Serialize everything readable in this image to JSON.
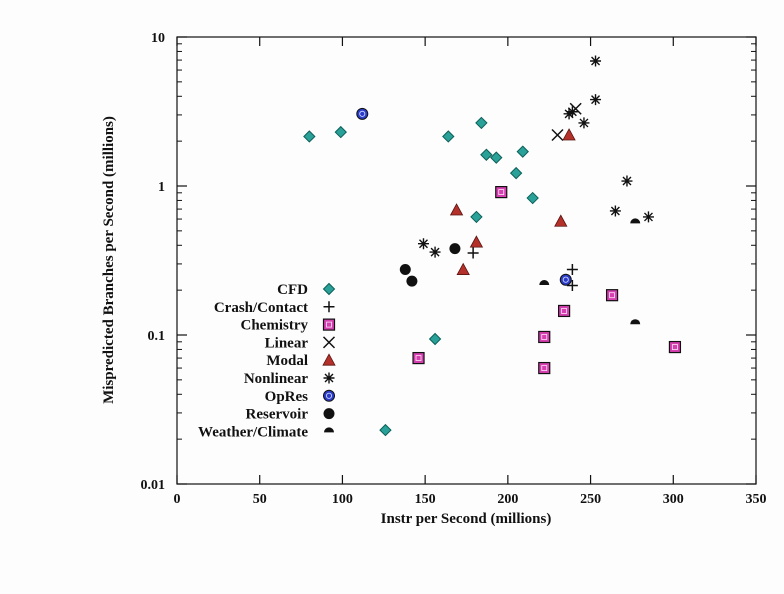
{
  "chart_data": {
    "type": "scatter",
    "title": "",
    "xlabel": "Instr per Second (millions)",
    "ylabel": "Mispredicted Branches per Second (millions)",
    "xlim": [
      0,
      350
    ],
    "ylim": [
      0.01,
      10
    ],
    "yscale": "log",
    "x_ticks": [
      "0",
      "50",
      "100",
      "150",
      "200",
      "250",
      "300",
      "350"
    ],
    "y_ticks": [
      "0.01",
      "0.1",
      "1",
      "10"
    ],
    "grid": false,
    "legend_position": "left",
    "series": [
      {
        "name": "CFD",
        "marker": "diamond",
        "color": "#2aa198",
        "points": [
          [
            80,
            2.15
          ],
          [
            99,
            2.3
          ],
          [
            126,
            0.023
          ],
          [
            156,
            0.094
          ],
          [
            164,
            2.15
          ],
          [
            181,
            0.62
          ],
          [
            184,
            2.65
          ],
          [
            187,
            1.62
          ],
          [
            193,
            1.55
          ],
          [
            205,
            1.22
          ],
          [
            209,
            1.7
          ],
          [
            215,
            0.83
          ]
        ]
      },
      {
        "name": "Crash/Contact",
        "marker": "plus",
        "color": "#111111",
        "points": [
          [
            179,
            0.355
          ],
          [
            239,
            0.275
          ],
          [
            239,
            0.215
          ]
        ]
      },
      {
        "name": "Chemistry",
        "marker": "square",
        "color": "#d63fb0",
        "points": [
          [
            146,
            0.07
          ],
          [
            196,
            0.91
          ],
          [
            222,
            0.097
          ],
          [
            222,
            0.06
          ],
          [
            234,
            0.145
          ],
          [
            263,
            0.185
          ],
          [
            301,
            0.083
          ]
        ]
      },
      {
        "name": "Linear",
        "marker": "x",
        "color": "#111111",
        "points": [
          [
            230,
            2.2
          ],
          [
            241,
            3.3
          ]
        ]
      },
      {
        "name": "Modal",
        "marker": "triangle",
        "color": "#b3312a",
        "points": [
          [
            169,
            0.69
          ],
          [
            173,
            0.275
          ],
          [
            181,
            0.42
          ],
          [
            232,
            0.58
          ],
          [
            237,
            2.2
          ]
        ]
      },
      {
        "name": "Nonlinear",
        "marker": "asterisk",
        "color": "#111111",
        "points": [
          [
            149,
            0.41
          ],
          [
            156,
            0.36
          ],
          [
            237,
            3.05
          ],
          [
            239,
            3.15
          ],
          [
            246,
            2.65
          ],
          [
            253,
            6.9
          ],
          [
            253,
            3.8
          ],
          [
            265,
            0.68
          ],
          [
            272,
            1.08
          ],
          [
            285,
            0.62
          ]
        ]
      },
      {
        "name": "OpRes",
        "marker": "circle-blue",
        "color": "#2a3bc8",
        "points": [
          [
            112,
            3.05
          ],
          [
            235,
            0.235
          ]
        ]
      },
      {
        "name": "Reservoir",
        "marker": "circle",
        "color": "#111111",
        "points": [
          [
            138,
            0.275
          ],
          [
            142,
            0.23
          ],
          [
            168,
            0.38
          ]
        ]
      },
      {
        "name": "Weather/Climate",
        "marker": "half-circle",
        "color": "#111111",
        "points": [
          [
            222,
            0.22
          ],
          [
            277,
            0.57
          ],
          [
            277,
            0.12
          ]
        ]
      }
    ]
  }
}
